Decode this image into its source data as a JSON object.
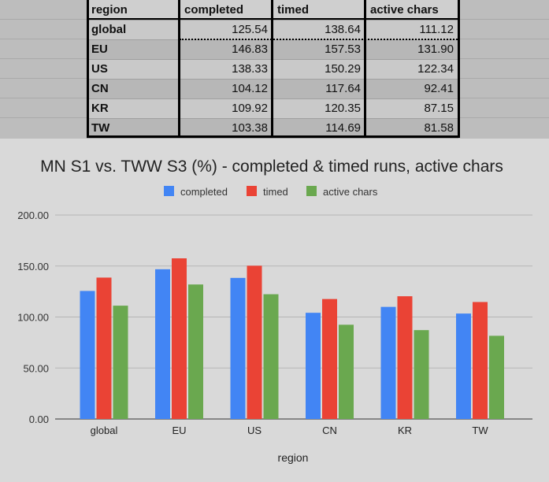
{
  "table": {
    "headers": [
      "region",
      "completed",
      "timed",
      "active chars"
    ],
    "rows": [
      [
        "global",
        "125.54",
        "138.64",
        "111.12"
      ],
      [
        "EU",
        "146.83",
        "157.53",
        "131.90"
      ],
      [
        "US",
        "138.33",
        "150.29",
        "122.34"
      ],
      [
        "CN",
        "104.12",
        "117.64",
        "92.41"
      ],
      [
        "KR",
        "109.92",
        "120.35",
        "87.15"
      ],
      [
        "TW",
        "103.38",
        "114.69",
        "81.58"
      ]
    ]
  },
  "chart_data": {
    "type": "bar",
    "title": "MN S1 vs. TWW S3 (%) - completed & timed runs, active chars",
    "xlabel": "region",
    "ylabel": "",
    "categories": [
      "global",
      "EU",
      "US",
      "CN",
      "KR",
      "TW"
    ],
    "series": [
      {
        "name": "completed",
        "color": "#4285f4",
        "values": [
          125.54,
          146.83,
          138.33,
          104.12,
          109.92,
          103.38
        ]
      },
      {
        "name": "timed",
        "color": "#ea4335",
        "values": [
          138.64,
          157.53,
          150.29,
          117.64,
          120.35,
          114.69
        ]
      },
      {
        "name": "active chars",
        "color": "#6aa84f",
        "values": [
          111.12,
          131.9,
          122.34,
          92.41,
          87.15,
          81.58
        ]
      }
    ],
    "ylim": [
      0,
      200
    ],
    "yticks": [
      "0.00",
      "50.00",
      "100.00",
      "150.00",
      "200.00"
    ],
    "grid": true,
    "legend": "top-center"
  }
}
